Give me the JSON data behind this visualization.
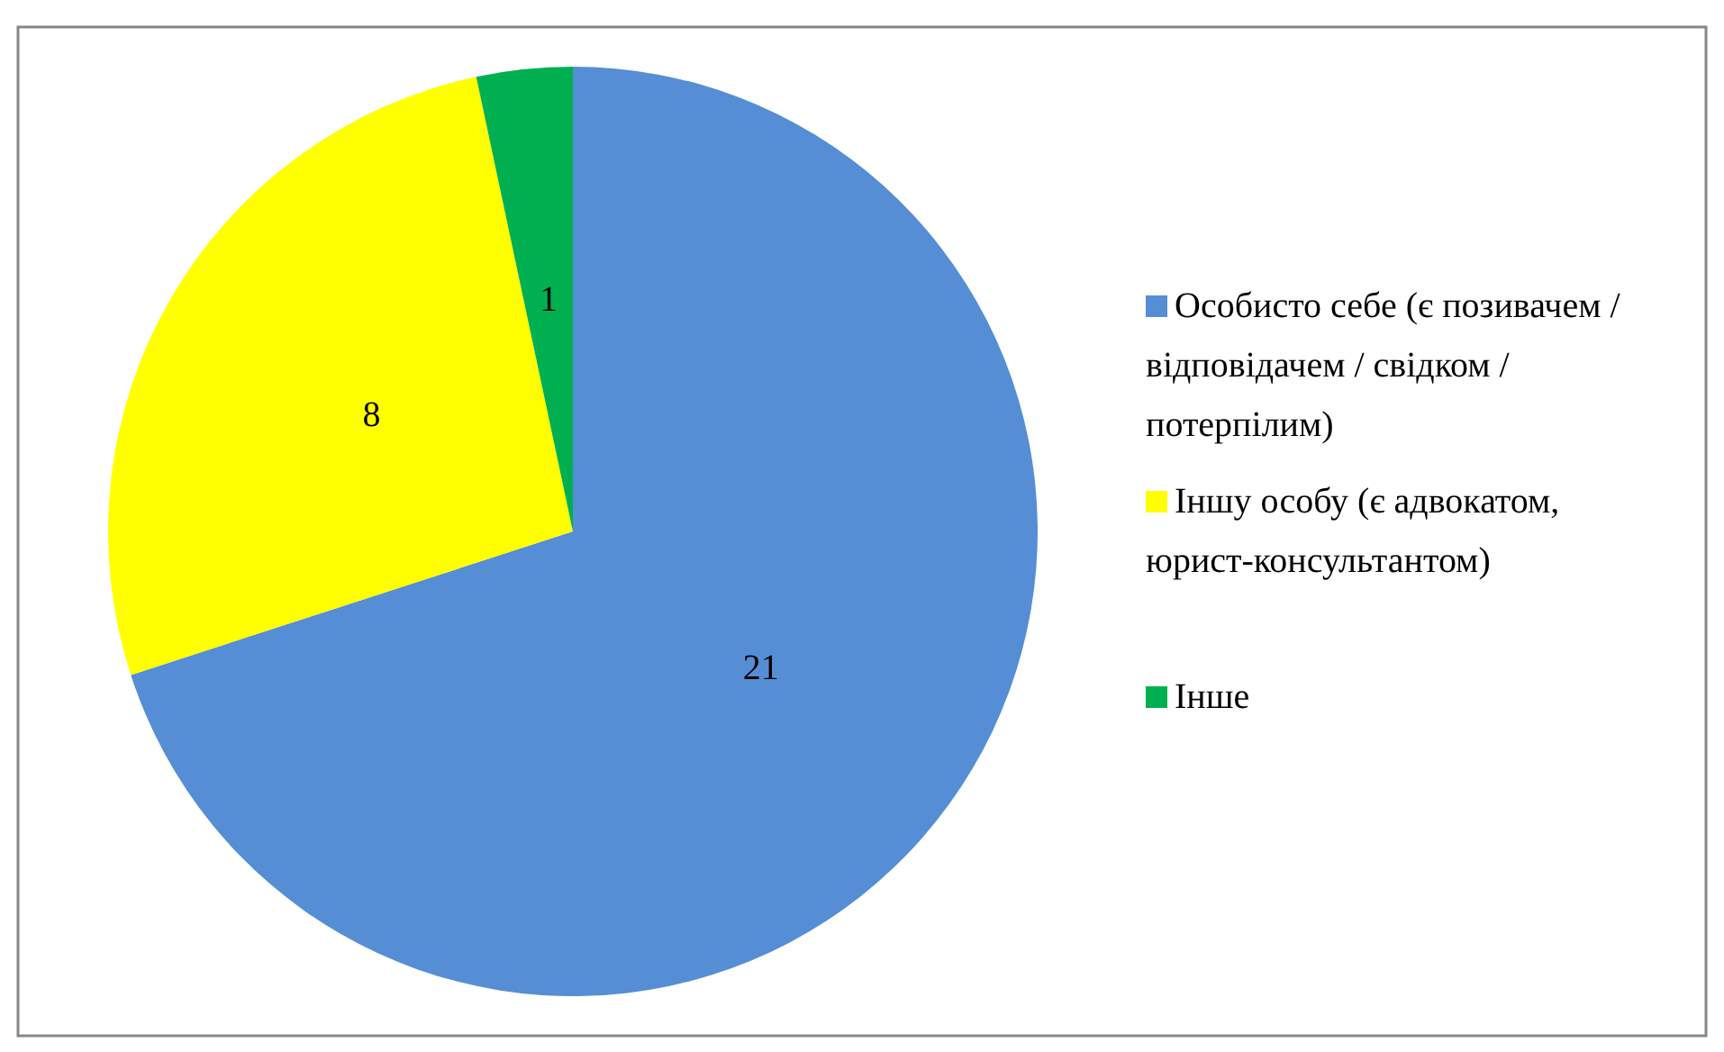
{
  "chart_data": {
    "type": "pie",
    "categories": [
      "Особисто себе (є позивачем / відповідачем / свідком / потерпілим)",
      "Іншу особу (є адвокатом, юрист-консультантом)",
      "Інше"
    ],
    "values": [
      21,
      8,
      1
    ],
    "colors": [
      "#558ed5",
      "#ffff00",
      "#00b050"
    ],
    "data_labels": true,
    "legend": "right"
  }
}
